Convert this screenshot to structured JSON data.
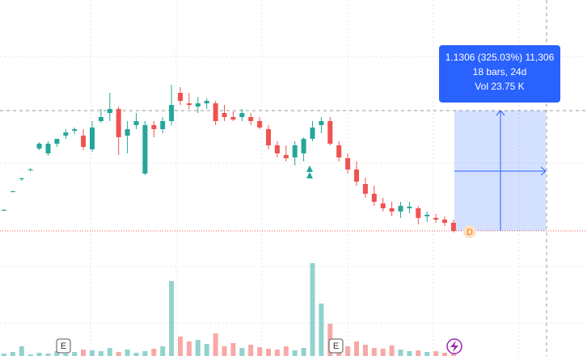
{
  "chart_data": {
    "type": "candlestick",
    "open": [
      0.6,
      0.83,
      0.98,
      1.1,
      1.36,
      1.3,
      1.42,
      1.52,
      1.58,
      1.52,
      1.35,
      1.7,
      1.8,
      1.85,
      1.52,
      1.65,
      1.05,
      1.65,
      1.6,
      1.7,
      2.05,
      1.92,
      1.88,
      1.92,
      1.92,
      1.8,
      1.75,
      1.75,
      1.75,
      1.7,
      1.6,
      1.4,
      1.28,
      1.25,
      1.3,
      1.48,
      1.65,
      1.7,
      1.4,
      1.24,
      1.1,
      0.92,
      0.8,
      0.68,
      0.62,
      0.58,
      0.62,
      0.62,
      0.52,
      0.5,
      0.48,
      0.44
    ],
    "high": [
      0.61,
      0.84,
      1.0,
      1.12,
      1.44,
      1.45,
      1.48,
      1.6,
      1.62,
      1.6,
      1.7,
      1.85,
      2.05,
      1.88,
      1.7,
      1.8,
      1.7,
      1.7,
      1.75,
      2.15,
      2.12,
      2.05,
      2.0,
      1.98,
      1.95,
      1.9,
      1.82,
      1.85,
      1.8,
      1.75,
      1.65,
      1.45,
      1.4,
      1.45,
      1.5,
      1.7,
      1.75,
      1.75,
      1.45,
      1.3,
      1.2,
      1.0,
      0.9,
      0.75,
      0.7,
      0.7,
      0.7,
      0.65,
      0.58,
      0.55,
      0.52,
      0.48
    ],
    "low": [
      0.59,
      0.82,
      0.96,
      1.08,
      1.34,
      1.27,
      1.38,
      1.48,
      1.54,
      1.34,
      1.32,
      1.68,
      1.7,
      1.28,
      1.3,
      1.6,
      1.03,
      1.5,
      1.55,
      1.65,
      1.9,
      1.85,
      1.8,
      1.85,
      1.65,
      1.7,
      1.7,
      1.7,
      1.65,
      1.6,
      1.35,
      1.25,
      1.2,
      1.15,
      1.2,
      1.45,
      1.55,
      1.4,
      1.2,
      1.05,
      0.9,
      0.75,
      0.65,
      0.58,
      0.52,
      0.5,
      0.56,
      0.42,
      0.45,
      0.44,
      0.4,
      0.32
    ],
    "close": [
      0.6,
      0.83,
      0.99,
      1.1,
      1.42,
      1.42,
      1.48,
      1.56,
      1.6,
      1.38,
      1.62,
      1.75,
      1.85,
      1.5,
      1.6,
      1.7,
      1.65,
      1.6,
      1.7,
      1.9,
      1.95,
      1.9,
      1.92,
      1.95,
      1.7,
      1.75,
      1.72,
      1.8,
      1.7,
      1.62,
      1.4,
      1.3,
      1.24,
      1.4,
      1.48,
      1.62,
      1.7,
      1.42,
      1.25,
      1.1,
      0.95,
      0.8,
      0.7,
      0.62,
      0.58,
      0.65,
      0.64,
      0.5,
      0.54,
      0.48,
      0.44,
      0.34
    ],
    "volume": [
      0.3,
      0.5,
      1.2,
      0.2,
      0.4,
      0.3,
      0.6,
      0.3,
      0.5,
      0.8,
      0.7,
      0.6,
      1.0,
      0.5,
      0.8,
      0.4,
      0.6,
      0.9,
      1.2,
      9.3,
      2.4,
      1.8,
      2.0,
      1.5,
      2.8,
      1.2,
      1.6,
      1.0,
      1.4,
      1.1,
      0.9,
      0.8,
      1.2,
      0.7,
      1.0,
      11.5,
      6.5,
      4.0,
      1.5,
      1.2,
      1.8,
      1.4,
      1.0,
      0.9,
      1.3,
      0.8,
      0.6,
      0.7,
      0.5,
      0.6,
      0.4,
      0.3
    ],
    "ylim": [
      0,
      3.2
    ],
    "volume_lim": [
      0,
      12
    ],
    "up_color": "#26a69a",
    "down_color": "#ef5350"
  },
  "tooltip": {
    "line1": "1.1306 (325.03%) 11,306",
    "line2": "18 bars, 24d",
    "line3": "Vol 23.75 K"
  },
  "markers": {
    "earnings_1": "E",
    "earnings_2": "E",
    "dividend": "D"
  }
}
